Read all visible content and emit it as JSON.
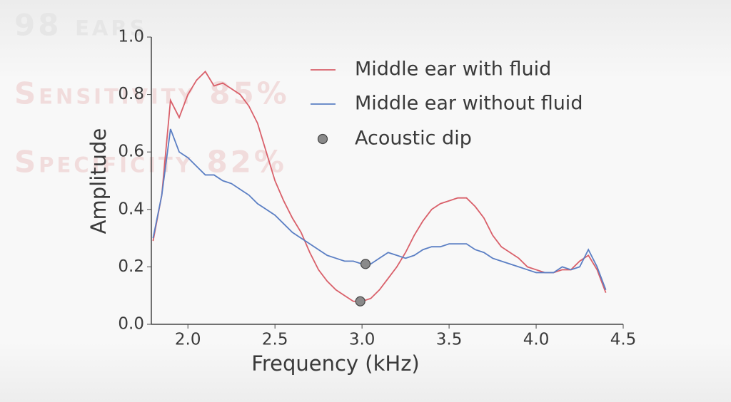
{
  "chart_data": {
    "type": "line",
    "annotations": [
      "98 ears",
      "Sensitivity 85%",
      "Specificity 82%"
    ],
    "xlabel": "Frequency (kHz)",
    "ylabel": "Amplitude",
    "x": [
      1.8,
      1.85,
      1.9,
      1.95,
      2.0,
      2.05,
      2.1,
      2.15,
      2.2,
      2.25,
      2.3,
      2.35,
      2.4,
      2.45,
      2.5,
      2.55,
      2.6,
      2.65,
      2.7,
      2.75,
      2.8,
      2.85,
      2.9,
      2.95,
      3.0,
      3.05,
      3.1,
      3.15,
      3.2,
      3.25,
      3.3,
      3.35,
      3.4,
      3.45,
      3.5,
      3.55,
      3.6,
      3.65,
      3.7,
      3.75,
      3.8,
      3.85,
      3.9,
      3.95,
      4.0,
      4.05,
      4.1,
      4.15,
      4.2,
      4.25,
      4.3,
      4.35,
      4.4
    ],
    "series": [
      {
        "name": "Middle ear with fluid",
        "color": "#d9606a",
        "values": [
          0.29,
          0.45,
          0.78,
          0.72,
          0.8,
          0.85,
          0.88,
          0.83,
          0.84,
          0.82,
          0.8,
          0.76,
          0.7,
          0.6,
          0.5,
          0.43,
          0.37,
          0.32,
          0.25,
          0.19,
          0.15,
          0.12,
          0.1,
          0.08,
          0.08,
          0.09,
          0.12,
          0.16,
          0.2,
          0.25,
          0.31,
          0.36,
          0.4,
          0.42,
          0.43,
          0.44,
          0.44,
          0.41,
          0.37,
          0.31,
          0.27,
          0.25,
          0.23,
          0.2,
          0.19,
          0.18,
          0.18,
          0.19,
          0.19,
          0.22,
          0.24,
          0.19,
          0.11
        ]
      },
      {
        "name": "Middle ear without fluid",
        "color": "#5b7fc4",
        "values": [
          0.3,
          0.45,
          0.68,
          0.6,
          0.58,
          0.55,
          0.52,
          0.52,
          0.5,
          0.49,
          0.47,
          0.45,
          0.42,
          0.4,
          0.38,
          0.35,
          0.32,
          0.3,
          0.28,
          0.26,
          0.24,
          0.23,
          0.22,
          0.22,
          0.21,
          0.21,
          0.23,
          0.25,
          0.24,
          0.23,
          0.24,
          0.26,
          0.27,
          0.27,
          0.28,
          0.28,
          0.28,
          0.26,
          0.25,
          0.23,
          0.22,
          0.21,
          0.2,
          0.19,
          0.18,
          0.18,
          0.18,
          0.2,
          0.19,
          0.2,
          0.26,
          0.2,
          0.12
        ]
      }
    ],
    "points": {
      "name": "Acoustic dip",
      "color": "#8a8a8a",
      "x": [
        2.99,
        3.02
      ],
      "values": [
        0.08,
        0.21
      ]
    },
    "xlim": [
      1.79,
      4.5
    ],
    "ylim": [
      0,
      1
    ],
    "xticks": [
      {
        "value": 2,
        "label": "2.0"
      },
      2.5,
      {
        "value": 3,
        "label": "3.0"
      },
      3.5,
      {
        "value": 4,
        "label": "4.0"
      },
      4.5
    ],
    "yticks": [
      {
        "value": 0,
        "label": "0.0"
      },
      0.2,
      0.4,
      0.6,
      0.8,
      {
        "value": 1,
        "label": "1.0"
      }
    ]
  }
}
